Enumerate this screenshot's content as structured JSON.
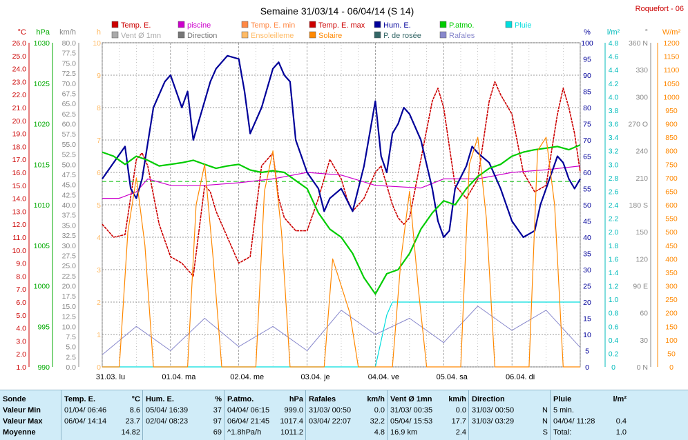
{
  "header": {
    "title": "Semaine 31/03/14 - 06/04/14 (S 14)",
    "station": "Roquefort - 06"
  },
  "legend": [
    {
      "label": "Temp. E.",
      "color": "#cc0000"
    },
    {
      "label": "piscine",
      "color": "#cc00cc"
    },
    {
      "label": "Temp. E. min",
      "color": "#ff8844"
    },
    {
      "label": "Temp. E. max",
      "color": "#cc0000"
    },
    {
      "label": "Hum. E.",
      "color": "#000099"
    },
    {
      "label": "P.atmo.",
      "color": "#00cc00"
    },
    {
      "label": "Pluie",
      "color": "#00dddd"
    },
    {
      "label": "Vent Ø 1mn",
      "color": "#aaaaaa"
    },
    {
      "label": "Direction",
      "color": "#777777"
    },
    {
      "label": "Ensoleilleme",
      "color": "#ffbb66"
    },
    {
      "label": "Solaire",
      "color": "#ff8800"
    },
    {
      "label": "P. de rosée",
      "color": "#336666"
    },
    {
      "label": "Rafales",
      "color": "#8888cc"
    }
  ],
  "axes": {
    "temp": {
      "unit": "°C",
      "color": "#cc0000",
      "ticks": [
        "26.0",
        "25.0",
        "24.0",
        "23.0",
        "22.0",
        "21.0",
        "20.0",
        "19.0",
        "18.0",
        "17.0",
        "16.0",
        "15.0",
        "14.0",
        "13.0",
        "12.0",
        "11.0",
        "10.0",
        "9.0",
        "8.0",
        "7.0",
        "6.0",
        "5.0",
        "4.0",
        "3.0",
        "2.0",
        "1.0"
      ]
    },
    "press": {
      "unit": "hPa",
      "color": "#00aa00",
      "ticks": [
        "1030",
        "1025",
        "1020",
        "1015",
        "1010",
        "1005",
        "1000",
        "995",
        "990"
      ]
    },
    "wind": {
      "unit": "km/h",
      "color": "#888888",
      "ticks": [
        "80.0",
        "77.5",
        "75.0",
        "72.5",
        "70.0",
        "67.5",
        "65.0",
        "62.5",
        "60.0",
        "57.5",
        "55.0",
        "52.5",
        "50.0",
        "47.5",
        "45.0",
        "42.5",
        "40.0",
        "37.5",
        "35.0",
        "32.5",
        "30.0",
        "27.5",
        "25.0",
        "22.5",
        "20.0",
        "17.5",
        "15.0",
        "12.5",
        "10.0",
        "7.5",
        "5.0",
        "2.5",
        "0.0"
      ]
    },
    "sun": {
      "unit": "h",
      "color": "#ffbb66",
      "ticks": [
        "10",
        "9",
        "8",
        "7",
        "6",
        "5",
        "4",
        "3",
        "2",
        "1",
        "0"
      ]
    },
    "hum": {
      "unit": "%",
      "color": "#000099",
      "ticks": [
        "100",
        "95",
        "90",
        "85",
        "80",
        "75",
        "70",
        "65",
        "60",
        "55",
        "50",
        "45",
        "40",
        "35",
        "30",
        "25",
        "20",
        "15",
        "10",
        "5",
        "0"
      ]
    },
    "rain": {
      "unit": "l/m²",
      "color": "#00bbbb",
      "ticks": [
        "4.8",
        "4.6",
        "4.4",
        "4.2",
        "4.0",
        "3.8",
        "3.6",
        "3.4",
        "3.2",
        "3.0",
        "2.8",
        "2.6",
        "2.4",
        "2.2",
        "2.0",
        "1.8",
        "1.6",
        "1.4",
        "1.2",
        "1.0",
        "0.8",
        "0.6",
        "0.4",
        "0.2",
        "0"
      ]
    },
    "dir": {
      "unit": "°",
      "color": "#888888",
      "ticks": [
        "360 N",
        "330",
        "300",
        "270 O",
        "240",
        "210",
        "180 S",
        "150",
        "120",
        "90 E",
        "60",
        "30",
        "0 N"
      ]
    },
    "solar": {
      "unit": "W/m²",
      "color": "#ff8800",
      "ticks": [
        "1200",
        "1150",
        "1100",
        "1050",
        "1000",
        "950",
        "900",
        "850",
        "800",
        "750",
        "700",
        "650",
        "600",
        "550",
        "500",
        "450",
        "400",
        "350",
        "300",
        "250",
        "200",
        "150",
        "100",
        "50",
        "0"
      ]
    },
    "days": [
      "31.03. lu",
      "01.04. ma",
      "02.04. me",
      "03.04. je",
      "04.04. ve",
      "05.04. sa",
      "06.04. di"
    ]
  },
  "chart_data": {
    "type": "line",
    "x_unit": "hours since 31.03 00:00",
    "series": [
      {
        "name": "Temp. E.",
        "axis": "temp",
        "x": [
          0,
          4,
          8,
          12,
          14,
          16,
          20,
          24,
          28,
          32,
          36,
          38,
          40,
          42,
          44,
          48,
          52,
          56,
          60,
          62,
          64,
          66,
          68,
          72,
          76,
          80,
          84,
          86,
          88,
          92,
          96,
          98,
          100,
          102,
          104,
          106,
          108,
          112,
          116,
          118,
          120,
          122,
          124,
          128,
          132,
          136,
          138,
          140,
          144,
          148,
          152,
          156,
          160,
          162,
          164,
          166,
          168
        ],
        "y": [
          12.0,
          11.0,
          11.2,
          17.0,
          17.5,
          16.5,
          12.0,
          9.5,
          9.0,
          8.0,
          15.0,
          14.5,
          13.0,
          12.0,
          11.0,
          9.0,
          9.5,
          16.5,
          17.5,
          14.0,
          12.5,
          12.0,
          11.5,
          11.5,
          14.0,
          17.0,
          15.5,
          14.0,
          13.0,
          14.0,
          16.0,
          16.5,
          15.0,
          13.5,
          12.5,
          12.0,
          12.5,
          17.0,
          21.5,
          22.5,
          21.0,
          18.0,
          15.0,
          14.0,
          15.5,
          21.5,
          23.0,
          22.0,
          20.5,
          16.0,
          14.5,
          15.0,
          20.5,
          22.5,
          21.0,
          19.0,
          16.0
        ]
      },
      {
        "name": "piscine",
        "axis": "temp",
        "x": [
          0,
          6,
          12,
          16,
          24,
          36,
          48,
          60,
          72,
          84,
          96,
          112,
          120,
          132,
          144,
          156,
          168
        ],
        "y": [
          14.0,
          14.0,
          14.5,
          15.5,
          15.0,
          15.0,
          15.2,
          15.5,
          16.0,
          15.8,
          15.0,
          14.8,
          15.5,
          15.5,
          16.0,
          16.2,
          16.5
        ]
      },
      {
        "name": "Hum. E.",
        "axis": "hum",
        "x": [
          0,
          4,
          8,
          10,
          12,
          14,
          18,
          22,
          24,
          28,
          30,
          32,
          36,
          38,
          40,
          44,
          48,
          50,
          52,
          56,
          60,
          62,
          64,
          66,
          68,
          72,
          76,
          78,
          80,
          84,
          88,
          92,
          96,
          98,
          100,
          102,
          104,
          106,
          108,
          112,
          116,
          118,
          120,
          122,
          124,
          128,
          130,
          132,
          136,
          140,
          144,
          148,
          152,
          154,
          156,
          160,
          162,
          164,
          166,
          168
        ],
        "y": [
          58,
          63,
          68,
          55,
          52,
          58,
          80,
          88,
          90,
          80,
          85,
          70,
          82,
          88,
          92,
          96,
          95,
          85,
          72,
          80,
          92,
          94,
          90,
          88,
          70,
          60,
          55,
          48,
          52,
          55,
          48,
          62,
          82,
          65,
          60,
          72,
          75,
          80,
          78,
          70,
          55,
          45,
          40,
          42,
          55,
          62,
          68,
          66,
          63,
          55,
          45,
          40,
          42,
          50,
          55,
          65,
          63,
          58,
          55,
          58
        ]
      },
      {
        "name": "P.atmo.",
        "axis": "press",
        "x": [
          0,
          4,
          8,
          12,
          16,
          20,
          24,
          28,
          32,
          36,
          40,
          44,
          48,
          52,
          56,
          60,
          64,
          68,
          72,
          76,
          80,
          84,
          88,
          92,
          96,
          100,
          104,
          108,
          112,
          116,
          120,
          124,
          128,
          132,
          136,
          140,
          144,
          148,
          152,
          156,
          160,
          164,
          168
        ],
        "y": [
          1016.5,
          1016.0,
          1015.0,
          1016.0,
          1015.5,
          1014.8,
          1015.0,
          1015.2,
          1015.5,
          1015.0,
          1014.5,
          1014.8,
          1015.0,
          1014.3,
          1014.0,
          1014.2,
          1014.0,
          1013.0,
          1012.0,
          1009.0,
          1007.0,
          1006.0,
          1004.0,
          1001.0,
          999.0,
          1001.5,
          1002.0,
          1004.0,
          1007.0,
          1009.0,
          1010.5,
          1010.0,
          1012.0,
          1013.5,
          1014.5,
          1015.0,
          1016.0,
          1016.5,
          1016.8,
          1017.0,
          1017.2,
          1016.8,
          1017.4
        ]
      },
      {
        "name": "Rafales",
        "axis": "wind",
        "x": [
          0,
          12,
          24,
          36,
          48,
          60,
          72,
          84,
          96,
          108,
          120,
          132,
          144,
          156,
          168
        ],
        "y": [
          3.0,
          10.0,
          4.0,
          12.0,
          5.0,
          10.0,
          4.0,
          14.0,
          8.0,
          12.0,
          6.0,
          15.0,
          9.0,
          14.0,
          4.8
        ]
      },
      {
        "name": "Pluie",
        "axis": "rain",
        "x": [
          0,
          96,
          98,
          100,
          102,
          104,
          120,
          132,
          144,
          156,
          168
        ],
        "y": [
          0,
          0,
          0.4,
          0.8,
          1.0,
          1.0,
          1.0,
          1.0,
          1.0,
          1.0,
          1.0
        ]
      },
      {
        "name": "Solaire",
        "axis": "solar",
        "x": [
          0,
          6,
          9,
          12,
          15,
          18,
          24,
          30,
          33,
          36,
          39,
          42,
          48,
          54,
          57,
          60,
          63,
          66,
          72,
          78,
          81,
          84,
          87,
          90,
          96,
          102,
          105,
          108,
          111,
          114,
          120,
          126,
          129,
          132,
          135,
          138,
          144,
          150,
          153,
          156,
          159,
          162,
          168
        ],
        "y": [
          0,
          0,
          500,
          700,
          450,
          0,
          0,
          0,
          600,
          750,
          400,
          0,
          0,
          0,
          650,
          800,
          500,
          0,
          0,
          0,
          400,
          300,
          200,
          0,
          0,
          0,
          400,
          650,
          300,
          0,
          0,
          0,
          750,
          850,
          550,
          0,
          0,
          0,
          800,
          850,
          600,
          0,
          0
        ]
      }
    ],
    "reference_lines": [
      {
        "axis": "temp",
        "y": 15.3,
        "color": "#00bb00",
        "style": "dashed"
      }
    ]
  },
  "stats": {
    "sonde": {
      "header": "Sonde",
      "rows": [
        "Valeur Min",
        "Valeur Max",
        "Moyenne"
      ]
    },
    "temp": {
      "header": "Temp. E.",
      "unit": "°C",
      "rows": [
        [
          "01/04/ 06:46",
          "8.6"
        ],
        [
          "06/04/ 14:14",
          "23.7"
        ],
        [
          "",
          "14.82"
        ]
      ]
    },
    "hum": {
      "header": "Hum. E.",
      "unit": "%",
      "rows": [
        [
          "05/04/ 16:39",
          "37"
        ],
        [
          "02/04/ 08:23",
          "97"
        ],
        [
          "",
          "69"
        ]
      ]
    },
    "press": {
      "header": "P.atmo.",
      "unit": "hPa",
      "rows": [
        [
          "04/04/ 06:15",
          "999.0"
        ],
        [
          "06/04/ 21:45",
          "1017.4"
        ],
        [
          "^1.8hPa/h",
          "1011.2"
        ]
      ]
    },
    "gust": {
      "header": "Rafales",
      "unit": "km/h",
      "rows": [
        [
          "31/03/ 00:50",
          "0.0"
        ],
        [
          "03/04/ 22:07",
          "32.2"
        ],
        [
          "",
          "4.8"
        ]
      ]
    },
    "wind": {
      "header": "Vent Ø 1mn",
      "unit": "km/h",
      "rows": [
        [
          "31/03/ 00:35",
          "0.0"
        ],
        [
          "05/04/ 15:53",
          "17.7"
        ],
        [
          "16.9 km",
          "2.4"
        ]
      ]
    },
    "dir": {
      "header": "Direction",
      "unit": "",
      "rows": [
        [
          "31/03/ 00:50",
          "N"
        ],
        [
          "31/03/ 03:29",
          "N"
        ],
        [
          "",
          "S"
        ]
      ]
    },
    "rain": {
      "header": "Pluie",
      "unit": "l/m²",
      "rows": [
        [
          "5 min.",
          ""
        ],
        [
          "04/04/ 11:28",
          "0.4"
        ],
        [
          "Total:",
          "1.0"
        ]
      ]
    }
  }
}
